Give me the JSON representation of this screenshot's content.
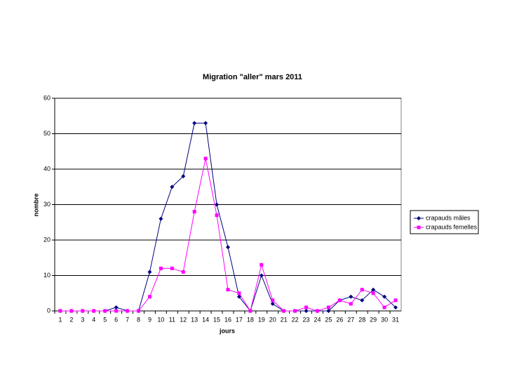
{
  "chart_data": {
    "type": "line",
    "title": "Migration \"aller\" mars 2011",
    "x_label": "jours",
    "y_label": "nombre",
    "categories": [
      "1",
      "2",
      "3",
      "4",
      "5",
      "6",
      "7",
      "8",
      "9",
      "10",
      "11",
      "12",
      "13",
      "14",
      "15",
      "16",
      "17",
      "18",
      "19",
      "20",
      "21",
      "22",
      "23",
      "24",
      "25",
      "26",
      "27",
      "28",
      "29",
      "30",
      "31"
    ],
    "series": [
      {
        "name": "crapauds mâles",
        "color": "#000080",
        "marker": "diamond",
        "values": [
          0,
          0,
          0,
          0,
          0,
          1,
          0,
          0,
          11,
          26,
          35,
          38,
          53,
          53,
          30,
          18,
          4,
          0,
          10,
          2,
          0,
          0,
          0,
          0,
          0,
          3,
          4,
          3,
          6,
          4,
          1
        ]
      },
      {
        "name": "crapauds femelles",
        "color": "#ff00ff",
        "marker": "square",
        "values": [
          0,
          0,
          0,
          0,
          0,
          0,
          0,
          0,
          4,
          12,
          12,
          11,
          28,
          43,
          27,
          6,
          5,
          0,
          13,
          3,
          0,
          0,
          1,
          0,
          1,
          3,
          2,
          6,
          5,
          1,
          3
        ]
      }
    ],
    "ylim": [
      0,
      60
    ],
    "yticks": [
      0,
      10,
      20,
      30,
      40,
      50,
      60
    ],
    "grid": true,
    "legend": "right"
  }
}
